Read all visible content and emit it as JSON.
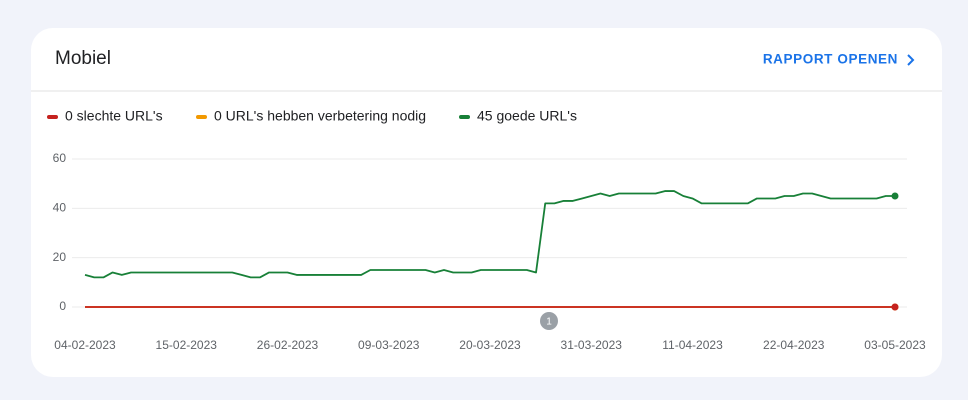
{
  "card": {
    "title": "Mobiel",
    "link": "RAPPORT OPENEN"
  },
  "chart_data": {
    "type": "line",
    "categories": [
      "04-02-2023",
      null,
      null,
      null,
      null,
      null,
      null,
      null,
      null,
      null,
      null,
      "15-02-2023",
      null,
      null,
      null,
      null,
      null,
      null,
      null,
      null,
      null,
      null,
      "26-02-2023",
      null,
      null,
      null,
      null,
      null,
      null,
      null,
      null,
      null,
      null,
      "09-03-2023",
      null,
      null,
      null,
      null,
      null,
      null,
      null,
      null,
      null,
      null,
      "20-03-2023",
      null,
      null,
      null,
      null,
      null,
      null,
      null,
      null,
      null,
      null,
      "31-03-2023",
      null,
      null,
      null,
      null,
      null,
      null,
      null,
      null,
      null,
      null,
      "11-04-2023",
      null,
      null,
      null,
      null,
      null,
      null,
      null,
      null,
      null,
      null,
      "22-04-2023",
      null,
      null,
      null,
      null,
      null,
      null,
      null,
      null,
      null,
      null,
      "03-05-2023"
    ],
    "series": [
      {
        "name": "0 slechte URL's",
        "color": "#c5221f",
        "values": [
          0,
          0,
          0,
          0,
          0,
          0,
          0,
          0,
          0,
          0,
          0,
          0,
          0,
          0,
          0,
          0,
          0,
          0,
          0,
          0,
          0,
          0,
          0,
          0,
          0,
          0,
          0,
          0,
          0,
          0,
          0,
          0,
          0,
          0,
          0,
          0,
          0,
          0,
          0,
          0,
          0,
          0,
          0,
          0,
          0,
          0,
          0,
          0,
          0,
          0,
          0,
          0,
          0,
          0,
          0,
          0,
          0,
          0,
          0,
          0,
          0,
          0,
          0,
          0,
          0,
          0,
          0,
          0,
          0,
          0,
          0,
          0,
          0,
          0,
          0,
          0,
          0,
          0,
          0,
          0,
          0,
          0,
          0,
          0,
          0,
          0,
          0,
          0,
          0
        ]
      },
      {
        "name": "0 URL's hebben verbetering nodig",
        "color": "#f29900",
        "values": [
          0,
          0,
          0,
          0,
          0,
          0,
          0,
          0,
          0,
          0,
          0,
          0,
          0,
          0,
          0,
          0,
          0,
          0,
          0,
          0,
          0,
          0,
          0,
          0,
          0,
          0,
          0,
          0,
          0,
          0,
          0,
          0,
          0,
          0,
          0,
          0,
          0,
          0,
          0,
          0,
          0,
          0,
          0,
          0,
          0,
          0,
          0,
          0,
          0,
          0,
          0,
          0,
          0,
          0,
          0,
          0,
          0,
          0,
          0,
          0,
          0,
          0,
          0,
          0,
          0,
          0,
          0,
          0,
          0,
          0,
          0,
          0,
          0,
          0,
          0,
          0,
          0,
          0,
          0,
          0,
          0,
          0,
          0,
          0,
          0,
          0,
          0,
          0,
          0
        ]
      },
      {
        "name": "45 goede URL's",
        "color": "#188038",
        "values": [
          13,
          12,
          12,
          14,
          13,
          14,
          14,
          14,
          14,
          14,
          14,
          14,
          14,
          14,
          14,
          14,
          14,
          13,
          12,
          12,
          14,
          14,
          14,
          13,
          13,
          13,
          13,
          13,
          13,
          13,
          13,
          15,
          15,
          15,
          15,
          15,
          15,
          15,
          14,
          15,
          14,
          14,
          14,
          15,
          15,
          15,
          15,
          15,
          15,
          14,
          42,
          42,
          43,
          43,
          44,
          45,
          46,
          45,
          46,
          46,
          46,
          46,
          46,
          47,
          47,
          45,
          44,
          42,
          42,
          42,
          42,
          42,
          42,
          44,
          44,
          44,
          45,
          45,
          46,
          46,
          45,
          44,
          44,
          44,
          44,
          44,
          44,
          45,
          45
        ]
      }
    ],
    "annotations": [
      "1"
    ],
    "ylim": [
      0,
      60
    ],
    "yticks": [
      0,
      20,
      40,
      60
    ],
    "grid": true
  }
}
